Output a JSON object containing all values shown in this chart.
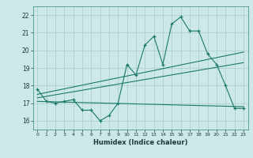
{
  "title": "",
  "xlabel": "Humidex (Indice chaleur)",
  "ylabel": "",
  "bg_color": "#cce8e8",
  "grid_color": "#b0d0d0",
  "line_color": "#1a7a6a",
  "xlim": [
    -0.5,
    23.5
  ],
  "ylim": [
    15.5,
    22.5
  ],
  "xticks": [
    0,
    1,
    2,
    3,
    4,
    5,
    6,
    7,
    8,
    9,
    10,
    11,
    12,
    13,
    14,
    15,
    16,
    17,
    18,
    19,
    20,
    21,
    22,
    23
  ],
  "yticks": [
    16,
    17,
    18,
    19,
    20,
    21,
    22
  ],
  "main_x": [
    0,
    1,
    2,
    3,
    4,
    5,
    6,
    7,
    8,
    9,
    10,
    11,
    12,
    13,
    14,
    15,
    16,
    17,
    18,
    19,
    20,
    21,
    22,
    23
  ],
  "main_y": [
    17.8,
    17.1,
    17.0,
    17.1,
    17.2,
    16.6,
    16.6,
    16.0,
    16.3,
    17.0,
    19.2,
    18.6,
    20.3,
    20.8,
    19.2,
    21.5,
    21.9,
    21.1,
    21.1,
    19.8,
    19.2,
    18.0,
    16.7,
    16.7
  ],
  "trend1_x": [
    0,
    23
  ],
  "trend1_y": [
    17.3,
    19.3
  ],
  "trend2_x": [
    0,
    23
  ],
  "trend2_y": [
    17.5,
    19.9
  ],
  "trend3_x": [
    0,
    23
  ],
  "trend3_y": [
    17.1,
    16.8
  ]
}
